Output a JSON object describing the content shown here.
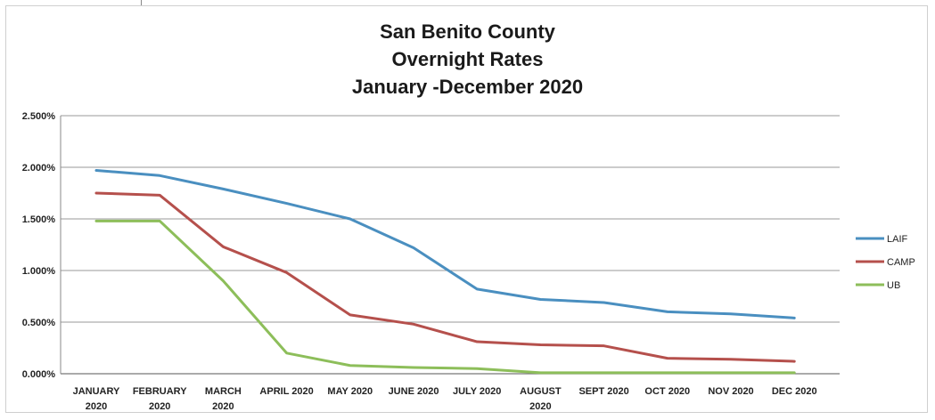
{
  "chart_data": {
    "type": "line",
    "title": [
      "San Benito County",
      "Overnight Rates",
      "January -December 2020"
    ],
    "categories": [
      [
        "JANUARY",
        "2020"
      ],
      [
        "FEBRUARY",
        "2020"
      ],
      [
        "MARCH",
        "2020"
      ],
      [
        "APRIL 2020"
      ],
      [
        "MAY 2020"
      ],
      [
        "JUNE 2020"
      ],
      [
        "JULY 2020"
      ],
      [
        "AUGUST",
        "2020"
      ],
      [
        "SEPT 2020"
      ],
      [
        "OCT 2020"
      ],
      [
        "NOV 2020"
      ],
      [
        "DEC 2020"
      ]
    ],
    "yticks": [
      "0.000%",
      "0.500%",
      "1.000%",
      "1.500%",
      "2.000%",
      "2.500%"
    ],
    "ylim": [
      0,
      2.5
    ],
    "grid": true,
    "legend_position": "right",
    "series": [
      {
        "name": "LAIF",
        "color": "#4a8fc0",
        "values": [
          1.97,
          1.92,
          1.79,
          1.65,
          1.5,
          1.22,
          0.82,
          0.72,
          0.69,
          0.6,
          0.58,
          0.54
        ]
      },
      {
        "name": "CAMP",
        "color": "#b5504c",
        "values": [
          1.75,
          1.73,
          1.23,
          0.98,
          0.57,
          0.48,
          0.31,
          0.28,
          0.27,
          0.15,
          0.14,
          0.12
        ]
      },
      {
        "name": "UB",
        "color": "#8dbe5a",
        "values": [
          1.48,
          1.48,
          0.9,
          0.2,
          0.08,
          0.06,
          0.05,
          0.01,
          0.01,
          0.01,
          0.01,
          0.01
        ]
      }
    ]
  }
}
